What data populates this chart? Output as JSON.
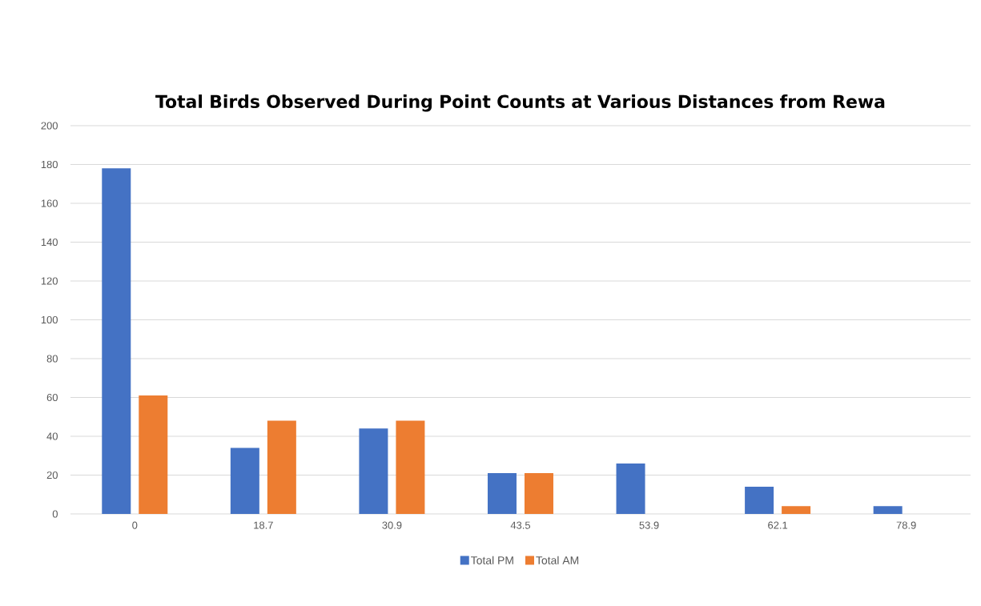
{
  "chart_data": {
    "type": "bar",
    "title": "Total Birds Observed During Point Counts at Various Distances from Rewa",
    "categories": [
      "0",
      "18.7",
      "30.9",
      "43.5",
      "53.9",
      "62.1",
      "78.9"
    ],
    "series": [
      {
        "name": "Total PM",
        "color": "#4472c4",
        "values": [
          178,
          34,
          44,
          21,
          26,
          14,
          4
        ]
      },
      {
        "name": "Total AM",
        "color": "#ed7d31",
        "values": [
          61,
          48,
          48,
          21,
          null,
          4,
          null
        ]
      }
    ],
    "ylim": [
      0,
      200
    ],
    "yticks": [
      0,
      20,
      40,
      60,
      80,
      100,
      120,
      140,
      160,
      180,
      200
    ],
    "grid": "y",
    "legend": "bottom"
  }
}
